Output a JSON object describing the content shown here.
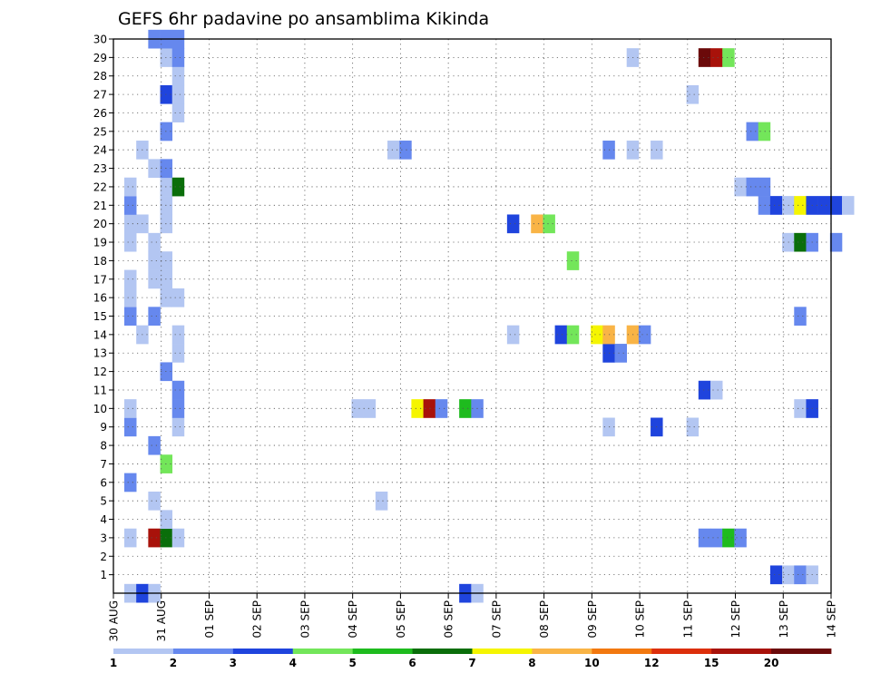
{
  "chart_data": {
    "type": "heatmap",
    "title": "GEFS 6hr padavine po ansamblima Kikinda",
    "xlabel": "",
    "ylabel": "",
    "x_tick_labels": [
      "30 AUG",
      "31 AUG",
      "01 SEP",
      "02 SEP",
      "03 SEP",
      "04 SEP",
      "05 SEP",
      "06 SEP",
      "07 SEP",
      "08 SEP",
      "09 SEP",
      "10 SEP",
      "11 SEP",
      "12 SEP",
      "13 SEP",
      "14 SEP"
    ],
    "y_tick_labels": [
      "1",
      "2",
      "3",
      "4",
      "5",
      "6",
      "7",
      "8",
      "9",
      "10",
      "11",
      "12",
      "13",
      "14",
      "15",
      "16",
      "17",
      "18",
      "19",
      "20",
      "21",
      "22",
      "23",
      "24",
      "25",
      "26",
      "27",
      "28",
      "29",
      "30"
    ],
    "x_range_days": [
      0,
      15
    ],
    "y_range_members": [
      0,
      30
    ],
    "grid": true,
    "steps_per_day": 4,
    "colorbar": {
      "labels": [
        "1",
        "2",
        "3",
        "4",
        "5",
        "6",
        "7",
        "8",
        "10",
        "12",
        "15",
        "20"
      ],
      "colors": [
        "#b3c6f2",
        "#6688ee",
        "#1f44dd",
        "#73e65a",
        "#1ebb1e",
        "#0a6e0a",
        "#f5f500",
        "#f9b446",
        "#f2780f",
        "#dc2f0b",
        "#a8120a",
        "#6b0a0a"
      ]
    },
    "cells": [
      {
        "member": 0,
        "step": 0,
        "c": 0
      },
      {
        "member": 0,
        "step": 1,
        "c": 2
      },
      {
        "member": 0,
        "step": 2,
        "c": 0
      },
      {
        "member": 0,
        "step": 28,
        "c": 2
      },
      {
        "member": 0,
        "step": 29,
        "c": 0
      },
      {
        "member": 1,
        "step": 54,
        "c": 2
      },
      {
        "member": 1,
        "step": 55,
        "c": 0
      },
      {
        "member": 1,
        "step": 56,
        "c": 1
      },
      {
        "member": 1,
        "step": 57,
        "c": 0
      },
      {
        "member": 3,
        "step": 0,
        "c": 0
      },
      {
        "member": 3,
        "step": 2,
        "c": 10
      },
      {
        "member": 3,
        "step": 3,
        "c": 5
      },
      {
        "member": 3,
        "step": 4,
        "c": 0
      },
      {
        "member": 3,
        "step": 48,
        "c": 1
      },
      {
        "member": 3,
        "step": 49,
        "c": 1
      },
      {
        "member": 3,
        "step": 50,
        "c": 4
      },
      {
        "member": 3,
        "step": 51,
        "c": 1
      },
      {
        "member": 4,
        "step": 3,
        "c": 0
      },
      {
        "member": 5,
        "step": 2,
        "c": 0
      },
      {
        "member": 5,
        "step": 21,
        "c": 0
      },
      {
        "member": 6,
        "step": 0,
        "c": 1
      },
      {
        "member": 7,
        "step": 3,
        "c": 3
      },
      {
        "member": 8,
        "step": 2,
        "c": 1
      },
      {
        "member": 9,
        "step": 0,
        "c": 1
      },
      {
        "member": 9,
        "step": 4,
        "c": 0
      },
      {
        "member": 9,
        "step": 40,
        "c": 0
      },
      {
        "member": 9,
        "step": 44,
        "c": 2
      },
      {
        "member": 9,
        "step": 47,
        "c": 0
      },
      {
        "member": 10,
        "step": 0,
        "c": 0
      },
      {
        "member": 10,
        "step": 4,
        "c": 1
      },
      {
        "member": 10,
        "step": 19,
        "c": 0
      },
      {
        "member": 10,
        "step": 20,
        "c": 0
      },
      {
        "member": 10,
        "step": 24,
        "c": 6
      },
      {
        "member": 10,
        "step": 25,
        "c": 10
      },
      {
        "member": 10,
        "step": 26,
        "c": 1
      },
      {
        "member": 10,
        "step": 28,
        "c": 4
      },
      {
        "member": 10,
        "step": 29,
        "c": 1
      },
      {
        "member": 10,
        "step": 56,
        "c": 0
      },
      {
        "member": 10,
        "step": 57,
        "c": 2
      },
      {
        "member": 11,
        "step": 4,
        "c": 1
      },
      {
        "member": 11,
        "step": 48,
        "c": 2
      },
      {
        "member": 11,
        "step": 49,
        "c": 0
      },
      {
        "member": 12,
        "step": 3,
        "c": 1
      },
      {
        "member": 13,
        "step": 4,
        "c": 0
      },
      {
        "member": 13,
        "step": 40,
        "c": 2
      },
      {
        "member": 13,
        "step": 41,
        "c": 1
      },
      {
        "member": 14,
        "step": 1,
        "c": 0
      },
      {
        "member": 14,
        "step": 4,
        "c": 0
      },
      {
        "member": 14,
        "step": 32,
        "c": 0
      },
      {
        "member": 14,
        "step": 36,
        "c": 2
      },
      {
        "member": 14,
        "step": 37,
        "c": 3
      },
      {
        "member": 14,
        "step": 39,
        "c": 6
      },
      {
        "member": 14,
        "step": 40,
        "c": 7
      },
      {
        "member": 14,
        "step": 42,
        "c": 7
      },
      {
        "member": 14,
        "step": 43,
        "c": 1
      },
      {
        "member": 15,
        "step": 0,
        "c": 1
      },
      {
        "member": 15,
        "step": 2,
        "c": 1
      },
      {
        "member": 15,
        "step": 56,
        "c": 1
      },
      {
        "member": 16,
        "step": 0,
        "c": 0
      },
      {
        "member": 16,
        "step": 3,
        "c": 0
      },
      {
        "member": 16,
        "step": 4,
        "c": 0
      },
      {
        "member": 17,
        "step": 0,
        "c": 0
      },
      {
        "member": 17,
        "step": 2,
        "c": 0
      },
      {
        "member": 17,
        "step": 3,
        "c": 0
      },
      {
        "member": 18,
        "step": 2,
        "c": 0
      },
      {
        "member": 18,
        "step": 3,
        "c": 0
      },
      {
        "member": 18,
        "step": 37,
        "c": 3
      },
      {
        "member": 19,
        "step": 0,
        "c": 0
      },
      {
        "member": 19,
        "step": 2,
        "c": 0
      },
      {
        "member": 19,
        "step": 55,
        "c": 0
      },
      {
        "member": 19,
        "step": 56,
        "c": 5
      },
      {
        "member": 19,
        "step": 57,
        "c": 1
      },
      {
        "member": 19,
        "step": 59,
        "c": 1
      },
      {
        "member": 20,
        "step": 0,
        "c": 0
      },
      {
        "member": 20,
        "step": 1,
        "c": 0
      },
      {
        "member": 20,
        "step": 3,
        "c": 0
      },
      {
        "member": 20,
        "step": 32,
        "c": 2
      },
      {
        "member": 20,
        "step": 34,
        "c": 7
      },
      {
        "member": 20,
        "step": 35,
        "c": 3
      },
      {
        "member": 21,
        "step": 0,
        "c": 1
      },
      {
        "member": 21,
        "step": 3,
        "c": 0
      },
      {
        "member": 21,
        "step": 53,
        "c": 1
      },
      {
        "member": 21,
        "step": 54,
        "c": 2
      },
      {
        "member": 21,
        "step": 55,
        "c": 0
      },
      {
        "member": 21,
        "step": 56,
        "c": 6
      },
      {
        "member": 21,
        "step": 57,
        "c": 2
      },
      {
        "member": 21,
        "step": 58,
        "c": 2
      },
      {
        "member": 21,
        "step": 59,
        "c": 2
      },
      {
        "member": 21,
        "step": 60,
        "c": 0
      },
      {
        "member": 22,
        "step": 0,
        "c": 0
      },
      {
        "member": 22,
        "step": 3,
        "c": 0
      },
      {
        "member": 22,
        "step": 4,
        "c": 5
      },
      {
        "member": 22,
        "step": 51,
        "c": 0
      },
      {
        "member": 22,
        "step": 52,
        "c": 1
      },
      {
        "member": 22,
        "step": 53,
        "c": 1
      },
      {
        "member": 23,
        "step": 2,
        "c": 0
      },
      {
        "member": 23,
        "step": 3,
        "c": 1
      },
      {
        "member": 24,
        "step": 1,
        "c": 0
      },
      {
        "member": 24,
        "step": 22,
        "c": 0
      },
      {
        "member": 24,
        "step": 23,
        "c": 1
      },
      {
        "member": 24,
        "step": 40,
        "c": 1
      },
      {
        "member": 24,
        "step": 42,
        "c": 0
      },
      {
        "member": 24,
        "step": 44,
        "c": 0
      },
      {
        "member": 25,
        "step": 3,
        "c": 1
      },
      {
        "member": 25,
        "step": 52,
        "c": 1
      },
      {
        "member": 25,
        "step": 53,
        "c": 3
      },
      {
        "member": 26,
        "step": 4,
        "c": 0
      },
      {
        "member": 27,
        "step": 3,
        "c": 2
      },
      {
        "member": 27,
        "step": 4,
        "c": 0
      },
      {
        "member": 27,
        "step": 47,
        "c": 0
      },
      {
        "member": 28,
        "step": 4,
        "c": 0
      },
      {
        "member": 29,
        "step": 3,
        "c": 0
      },
      {
        "member": 29,
        "step": 4,
        "c": 1
      },
      {
        "member": 29,
        "step": 42,
        "c": 0
      },
      {
        "member": 29,
        "step": 48,
        "c": 11
      },
      {
        "member": 29,
        "step": 49,
        "c": 10
      },
      {
        "member": 29,
        "step": 50,
        "c": 3
      },
      {
        "member": 30,
        "step": 2,
        "c": 1
      },
      {
        "member": 30,
        "step": 3,
        "c": 1
      },
      {
        "member": 30,
        "step": 4,
        "c": 1
      }
    ]
  }
}
